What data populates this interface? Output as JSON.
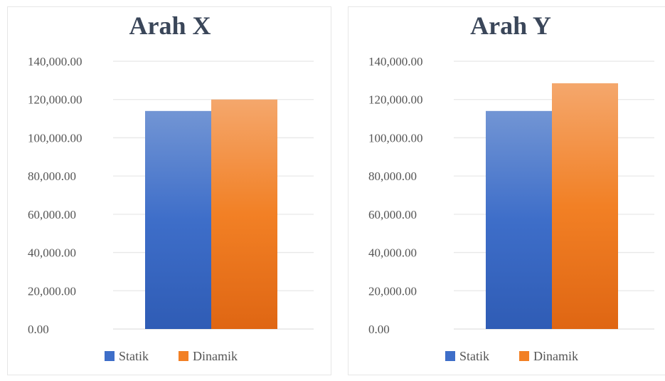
{
  "colors": {
    "statik_top": "#7295d4",
    "statik_mid": "#3e6ec9",
    "statik_bottom": "#2f5cb5",
    "dinamik_top": "#f4a76c",
    "dinamik_mid": "#f28025",
    "dinamik_bottom": "#df6613",
    "title": "#3a4659",
    "tick_text": "#555555",
    "gridline": "#e8e8e8"
  },
  "chart_data": [
    {
      "type": "bar",
      "title": "Arah X",
      "xlabel": "",
      "ylabel": "",
      "ylim": [
        0,
        140000
      ],
      "ytick_values": [
        0,
        20000,
        40000,
        60000,
        80000,
        100000,
        120000,
        140000
      ],
      "yticks": [
        "0.00",
        "20,000.00",
        "40,000.00",
        "60,000.00",
        "80,000.00",
        "100,000.00",
        "120,000.00",
        "140,000.00"
      ],
      "categories": [
        ""
      ],
      "series": [
        {
          "name": "Statik",
          "values": [
            114000
          ]
        },
        {
          "name": "Dinamik",
          "values": [
            120000
          ]
        }
      ],
      "grid": true,
      "legend": "bottom"
    },
    {
      "type": "bar",
      "title": "Arah Y",
      "xlabel": "",
      "ylabel": "",
      "ylim": [
        0,
        140000
      ],
      "ytick_values": [
        0,
        20000,
        40000,
        60000,
        80000,
        100000,
        120000,
        140000
      ],
      "yticks": [
        "0.00",
        "20,000.00",
        "40,000.00",
        "60,000.00",
        "80,000.00",
        "100,000.00",
        "120,000.00",
        "140,000.00"
      ],
      "categories": [
        ""
      ],
      "series": [
        {
          "name": "Statik",
          "values": [
            114000
          ]
        },
        {
          "name": "Dinamik",
          "values": [
            128500
          ]
        }
      ],
      "grid": true,
      "legend": "bottom"
    }
  ]
}
